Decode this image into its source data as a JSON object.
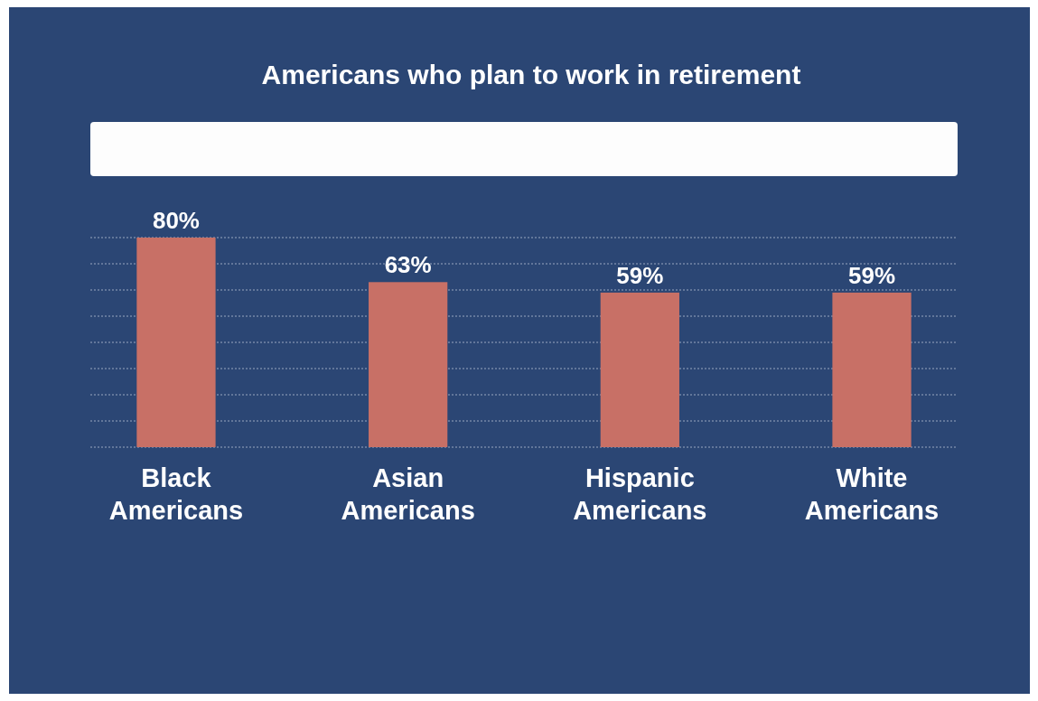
{
  "chart_data": {
    "type": "bar",
    "title": "Americans who plan to work in retirement",
    "categories": [
      "Black Americans",
      "Asian Americans",
      "Hispanic Americans",
      "White Americans"
    ],
    "values": [
      80,
      63,
      59,
      59
    ],
    "value_labels": [
      "80%",
      "63%",
      "59%",
      "59%"
    ],
    "color": "#c87066",
    "ylim": [
      0,
      80
    ],
    "yticks": [
      {
        "value": 0,
        "label": null
      },
      {
        "value": 10,
        "label": null
      },
      {
        "value": 20,
        "label": null
      },
      {
        "value": 30,
        "label": null
      },
      {
        "value": 40,
        "label": null
      },
      {
        "value": 50,
        "label": null
      },
      {
        "value": 60,
        "label": null
      },
      {
        "value": 70,
        "label": null
      },
      {
        "value": 80,
        "label": null
      }
    ],
    "grid": "y",
    "tick_labels": "x"
  }
}
